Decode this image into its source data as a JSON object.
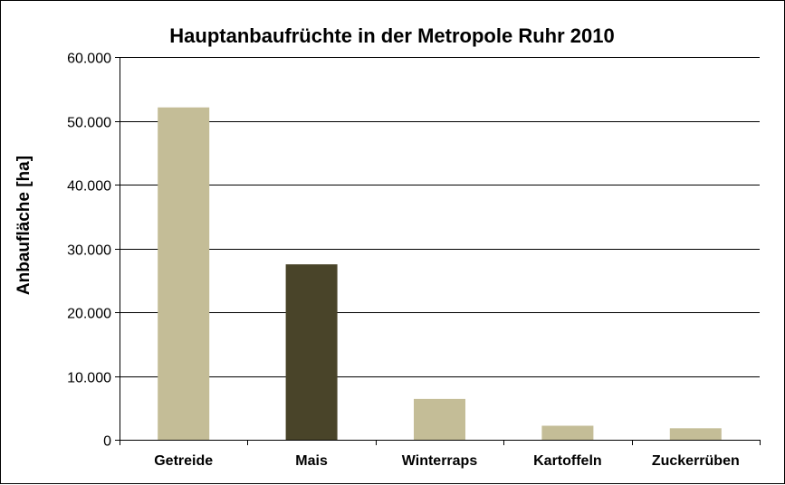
{
  "chart_data": {
    "type": "bar",
    "title": "Hauptanbaufrüchte in der Metropole Ruhr 2010",
    "xlabel": "",
    "ylabel": "Anbaufläche  [ha]",
    "categories": [
      "Getreide",
      "Mais",
      "Winterraps",
      "Kartoffeln",
      "Zuckerrüben"
    ],
    "values": [
      52100,
      27500,
      6400,
      2200,
      1800
    ],
    "ylim": [
      0,
      60000
    ],
    "yticks": [
      0,
      10000,
      20000,
      30000,
      40000,
      50000,
      60000
    ],
    "ytick_labels": [
      "0",
      "10.000",
      "20.000",
      "30.000",
      "40.000",
      "50.000",
      "60.000"
    ],
    "colors": [
      "#c4bd97",
      "#494429",
      "#c4bd97",
      "#c4bd97",
      "#c4bd97"
    ],
    "grid": true,
    "legend": "none"
  }
}
